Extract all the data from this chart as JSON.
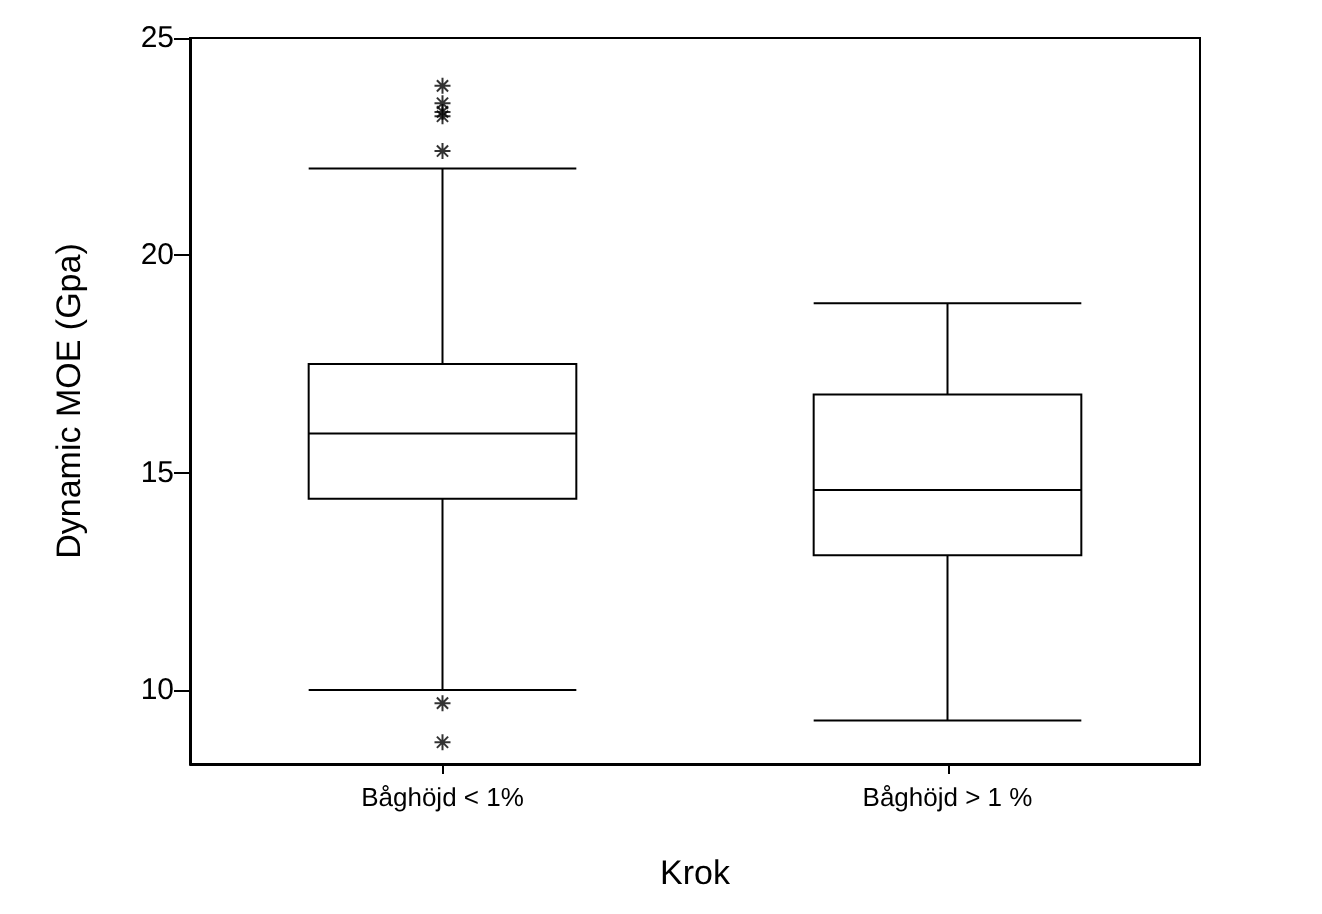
{
  "chart_data": {
    "type": "box",
    "xlabel": "Krok",
    "ylabel": "Dynamic MOE (Gpa)",
    "categories": [
      "Båghöjd < 1%",
      "Båghöjd > 1 %"
    ],
    "boxes": [
      {
        "low": 10.0,
        "q1": 14.4,
        "median": 15.9,
        "q3": 17.5,
        "high": 22.0,
        "outliers": [
          23.9,
          23.5,
          23.3,
          23.2,
          22.4,
          9.7,
          8.8
        ]
      },
      {
        "low": 9.3,
        "q1": 13.1,
        "median": 14.6,
        "q3": 16.8,
        "high": 18.9
      }
    ],
    "color": "#000000",
    "marker": "cross",
    "ylim": [
      8.3,
      25
    ],
    "yticks": [
      10,
      15,
      20,
      25
    ],
    "grid": false
  }
}
